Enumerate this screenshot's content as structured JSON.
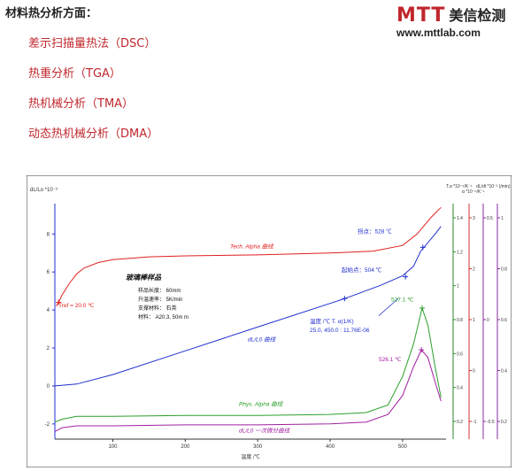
{
  "heading": "材料热分析方面：",
  "methods": [
    "差示扫描量热法（DSC）",
    "热重分析（TGA）",
    "热机械分析（TMA）",
    "动态热机械分析（DMA）"
  ],
  "logo": {
    "mark": "MTT",
    "name": "美信检测",
    "url": "www.mttlab.com"
  },
  "chart_data": {
    "type": "line",
    "xlabel": "温度 /℃",
    "x_ticks": [
      100,
      200,
      300,
      400,
      500
    ],
    "xlim": [
      20,
      560
    ],
    "left_axis": {
      "label": "dL/Lo *10⁻³",
      "ticks": [
        -2,
        0,
        2,
        4,
        6,
        8
      ],
      "range": [
        -2.8,
        9.6
      ]
    },
    "right_axes": [
      {
        "label": "T.α *10⁻⁶/K⁻¹",
        "ticks": [
          0.2,
          0.4,
          0.6,
          0.8,
          1.0,
          1.2,
          1.4
        ],
        "color": "#2a8a2a"
      },
      {
        "label": "α *10⁻⁶/K⁻¹",
        "ticks": [
          -1,
          0,
          1,
          2,
          3
        ],
        "color": "#d03030"
      },
      {
        "label": "dL/dt *10⁻³ (/min)",
        "ticks": [
          -0.5,
          0,
          0.5
        ],
        "color": "#8a2aa0"
      },
      {
        "label": "",
        "ticks": [
          0.2,
          0.4,
          0.6,
          0.8,
          1.0
        ],
        "color": "#8a2aa0"
      }
    ],
    "series": [
      {
        "name": "Tech. Alpha 曲线",
        "color": "#e02020",
        "points": [
          [
            22,
            4.2
          ],
          [
            25,
            4.4
          ],
          [
            30,
            4.8
          ],
          [
            40,
            5.4
          ],
          [
            50,
            5.9
          ],
          [
            60,
            6.2
          ],
          [
            80,
            6.5
          ],
          [
            100,
            6.65
          ],
          [
            150,
            6.8
          ],
          [
            200,
            6.85
          ],
          [
            300,
            6.9
          ],
          [
            400,
            7.0
          ],
          [
            460,
            7.1
          ],
          [
            500,
            7.4
          ],
          [
            520,
            8.0
          ],
          [
            540,
            8.9
          ],
          [
            553,
            9.4
          ]
        ]
      },
      {
        "name": "dL/L0 曲线",
        "color": "#2030d0",
        "points": [
          [
            20,
            0.0
          ],
          [
            50,
            0.1
          ],
          [
            100,
            0.6
          ],
          [
            200,
            1.85
          ],
          [
            300,
            3.1
          ],
          [
            420,
            4.6
          ],
          [
            470,
            5.3
          ],
          [
            500,
            5.8
          ],
          [
            515,
            6.3
          ],
          [
            525,
            7.1
          ],
          [
            545,
            8.0
          ],
          [
            553,
            8.4
          ]
        ]
      },
      {
        "name": "Phys. Alpha 曲线",
        "color": "#2aa02a",
        "points": [
          [
            20,
            -1.9
          ],
          [
            30,
            -1.75
          ],
          [
            50,
            -1.6
          ],
          [
            100,
            -1.6
          ],
          [
            200,
            -1.55
          ],
          [
            300,
            -1.55
          ],
          [
            400,
            -1.5
          ],
          [
            450,
            -1.4
          ],
          [
            480,
            -1.0
          ],
          [
            500,
            0.5
          ],
          [
            515,
            2.2
          ],
          [
            527,
            4.1
          ],
          [
            535,
            3.2
          ],
          [
            545,
            1.0
          ],
          [
            553,
            -0.6
          ]
        ]
      },
      {
        "name": "dL/L0 一次微分曲线",
        "color": "#a020a0",
        "points": [
          [
            20,
            -2.4
          ],
          [
            30,
            -2.2
          ],
          [
            50,
            -2.1
          ],
          [
            100,
            -2.1
          ],
          [
            200,
            -2.05
          ],
          [
            300,
            -2.05
          ],
          [
            400,
            -2.0
          ],
          [
            450,
            -1.9
          ],
          [
            480,
            -1.5
          ],
          [
            500,
            -0.5
          ],
          [
            515,
            1.0
          ],
          [
            526,
            1.9
          ],
          [
            535,
            1.5
          ],
          [
            545,
            0.2
          ],
          [
            553,
            -0.8
          ]
        ]
      }
    ],
    "curve_labels": {
      "tech_alpha": "Tech. Alpha  曲线",
      "dl": "dL/L0  曲线",
      "phys_alpha": "Phys. Alpha  曲线",
      "derivative": "dL/L0  一次微分曲线"
    },
    "annotations": {
      "tref": "Tref = 20.0 ℃",
      "sample": {
        "title": "玻璃棒样品",
        "rows": [
          "样品长度：   60mm",
          "升温速率：   5K/min",
          "支撑材料：  石英",
          "材料：      A20.3, 50m m"
        ]
      },
      "transition_point": "拐点：528 ℃",
      "onset_point": "起始点：504 ℃",
      "alpha_readout": [
        "温度 /℃        T. α(1/K)",
        "25.0, 450.0 : 11.76E-06"
      ],
      "phys_peak": "527.1 ℃",
      "deriv_peak": "526.1 ℃"
    }
  }
}
